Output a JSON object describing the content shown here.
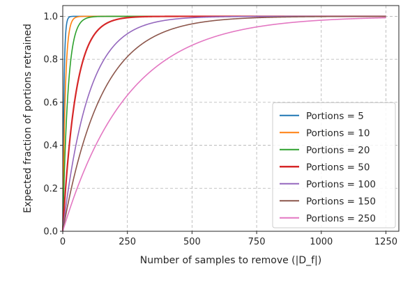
{
  "chart_data": {
    "type": "line",
    "title": "",
    "xlabel": "Number of samples to remove (|D_f|)",
    "ylabel": "Expected fraction of portions retrained",
    "xlim": [
      0,
      1300
    ],
    "ylim": [
      0,
      1.05
    ],
    "x_ticks": [
      0,
      250,
      500,
      750,
      1000,
      1250
    ],
    "y_ticks": [
      0.0,
      0.2,
      0.4,
      0.6,
      0.8,
      1.0
    ],
    "x_tick_labels": [
      "0",
      "250",
      "500",
      "750",
      "1000",
      "1250"
    ],
    "y_tick_labels": [
      "0.0",
      "0.2",
      "0.4",
      "0.6",
      "0.8",
      "1.0"
    ],
    "grid": true,
    "legend_position": "bottom-right",
    "x_range": [
      0,
      1250
    ],
    "series": [
      {
        "name": "Portions = 5",
        "portions": 5,
        "color": "#1f77b4"
      },
      {
        "name": "Portions = 10",
        "portions": 10,
        "color": "#ff7f0e"
      },
      {
        "name": "Portions = 20",
        "portions": 20,
        "color": "#2ca02c"
      },
      {
        "name": "Portions = 50",
        "portions": 50,
        "color": "#d62728"
      },
      {
        "name": "Portions = 100",
        "portions": 100,
        "color": "#9467bd"
      },
      {
        "name": "Portions = 150",
        "portions": 150,
        "color": "#8c564b"
      },
      {
        "name": "Portions = 250",
        "portions": 250,
        "color": "#e377c2"
      }
    ]
  }
}
